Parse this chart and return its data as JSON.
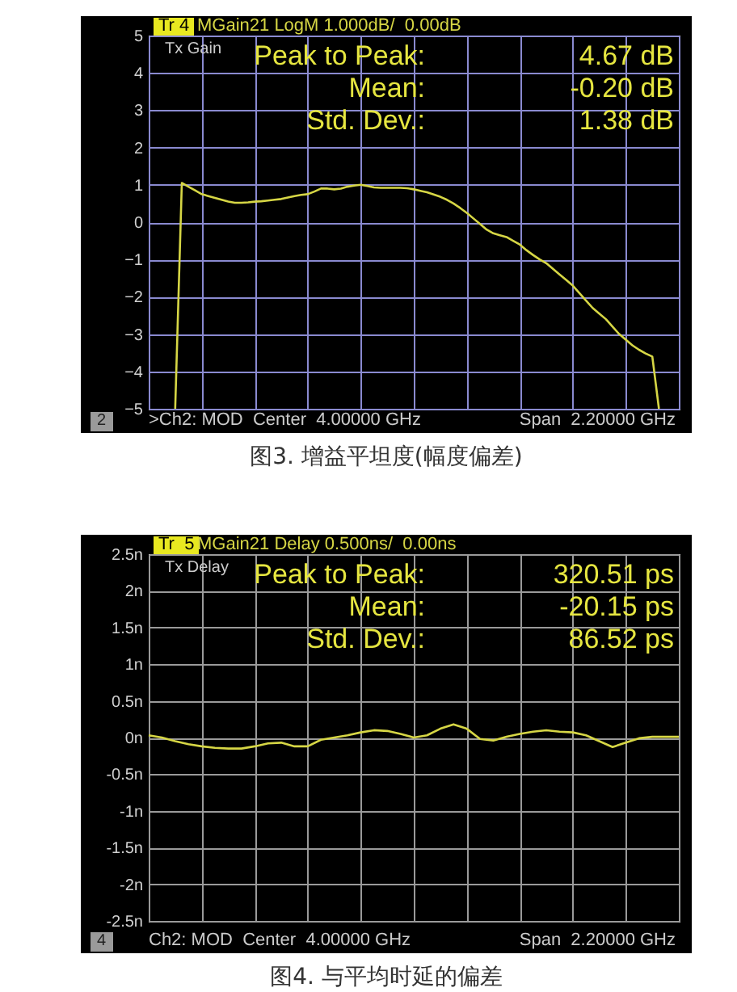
{
  "chart_data": [
    {
      "type": "line",
      "categories": [
        null,
        null,
        null,
        null,
        null,
        null,
        null,
        null,
        null,
        null,
        null,
        null,
        null,
        null,
        null,
        null,
        null,
        null,
        null,
        null,
        null,
        null,
        null,
        null,
        null,
        null,
        null,
        null,
        null,
        null,
        null,
        null,
        null,
        null,
        null,
        null,
        null,
        null,
        null,
        null,
        null,
        null,
        null,
        null,
        null,
        null,
        null,
        null,
        null,
        null,
        null,
        null,
        null,
        null,
        null,
        null,
        null,
        null,
        null,
        null,
        null,
        null,
        null,
        null,
        null,
        null,
        null,
        null,
        null,
        null,
        null,
        null,
        null,
        null,
        null,
        null,
        null,
        null,
        null,
        null,
        null
      ],
      "series": [
        {
          "color": "#d6d645",
          "values": [
            null,
            null,
            null,
            null,
            -5,
            1.05,
            0.95,
            0.85,
            0.75,
            0.7,
            0.65,
            0.6,
            0.55,
            0.52,
            0.52,
            0.53,
            0.55,
            0.56,
            0.58,
            0.6,
            0.62,
            0.66,
            0.7,
            0.73,
            0.75,
            0.82,
            0.9,
            0.9,
            0.88,
            0.9,
            0.95,
            0.98,
            1.0,
            0.97,
            0.93,
            0.92,
            0.92,
            0.92,
            0.92,
            0.91,
            0.88,
            0.84,
            0.8,
            0.74,
            0.68,
            0.6,
            0.5,
            0.38,
            0.25,
            0.1,
            -0.05,
            -0.2,
            -0.3,
            -0.35,
            -0.4,
            -0.5,
            -0.6,
            -0.75,
            -0.88,
            -1.0,
            -1.1,
            -1.25,
            -1.4,
            -1.55,
            -1.7,
            -1.9,
            -2.1,
            -2.3,
            -2.45,
            -2.6,
            -2.8,
            -3.0,
            -3.15,
            -3.3,
            -3.42,
            -3.52,
            -3.6,
            -5,
            null,
            null,
            null
          ]
        }
      ],
      "ylim": [
        -5,
        5
      ],
      "yticks": [
        -5,
        -4,
        -3,
        -2,
        -1,
        0,
        1,
        2,
        3,
        4,
        5
      ],
      "grid": true,
      "tick_labels": "y",
      "annotations": [
        "Tr 4",
        "MGain21 LogM 1.000dB/  0.00dB",
        "Tx Gain",
        "Peak to Peak:",
        "4.67 dB",
        "Mean:",
        "-0.20 dB",
        "Std. Dev.:",
        "1.38 dB",
        "2",
        ">Ch2: MOD  Center  4.00000 GHz",
        "Span  2.20000 GHz",
        "图3. 增益平坦度(幅度偏差)"
      ]
    },
    {
      "type": "line",
      "categories": [
        null,
        null,
        null,
        null,
        null,
        null,
        null,
        null,
        null,
        null,
        null,
        null,
        null,
        null,
        null,
        null,
        null,
        null,
        null,
        null,
        null,
        null,
        null,
        null,
        null,
        null,
        null,
        null,
        null,
        null,
        null,
        null,
        null,
        null,
        null,
        null,
        null,
        null,
        null,
        null,
        null
      ],
      "series": [
        {
          "color": "#d6d645",
          "values": [
            0.03,
            0.0,
            -0.05,
            -0.09,
            -0.12,
            -0.14,
            -0.15,
            -0.15,
            -0.12,
            -0.08,
            -0.07,
            -0.12,
            -0.12,
            -0.03,
            0.0,
            0.03,
            0.07,
            0.1,
            0.09,
            0.05,
            0.0,
            0.03,
            0.12,
            0.18,
            0.12,
            -0.02,
            -0.04,
            0.01,
            0.05,
            0.08,
            0.1,
            0.08,
            0.07,
            0.03,
            -0.05,
            -0.13,
            -0.07,
            -0.01,
            0.01,
            0.01,
            0.01
          ]
        }
      ],
      "ylim": [
        -2.5,
        2.5
      ],
      "yticks": [
        {
          "value": -2.5,
          "label": "-2.5n"
        },
        {
          "value": -2,
          "label": "-2n"
        },
        {
          "value": -1.5,
          "label": "-1.5n"
        },
        {
          "value": -1,
          "label": "-1n"
        },
        {
          "value": -0.5,
          "label": "-0.5n"
        },
        {
          "value": 0,
          "label": "0n"
        },
        {
          "value": 0.5,
          "label": "0.5n"
        },
        {
          "value": 1,
          "label": "1n"
        },
        {
          "value": 1.5,
          "label": "1.5n"
        },
        {
          "value": 2,
          "label": "2n"
        },
        {
          "value": 2.5,
          "label": "2.5n"
        }
      ],
      "grid": true,
      "tick_labels": "y",
      "annotations": [
        "Tr  5",
        "MGain21 Delay 0.500ns/  0.00ns",
        "Tx Delay",
        "Peak to Peak:",
        "320.51 ps",
        "Mean:",
        "-20.15 ps",
        "Std. Dev.:",
        "86.52 ps",
        "4",
        "Ch2: MOD  Center  4.00000 GHz",
        "Span  2.20000 GHz",
        "图4. 与平均时延的偏差"
      ]
    }
  ]
}
